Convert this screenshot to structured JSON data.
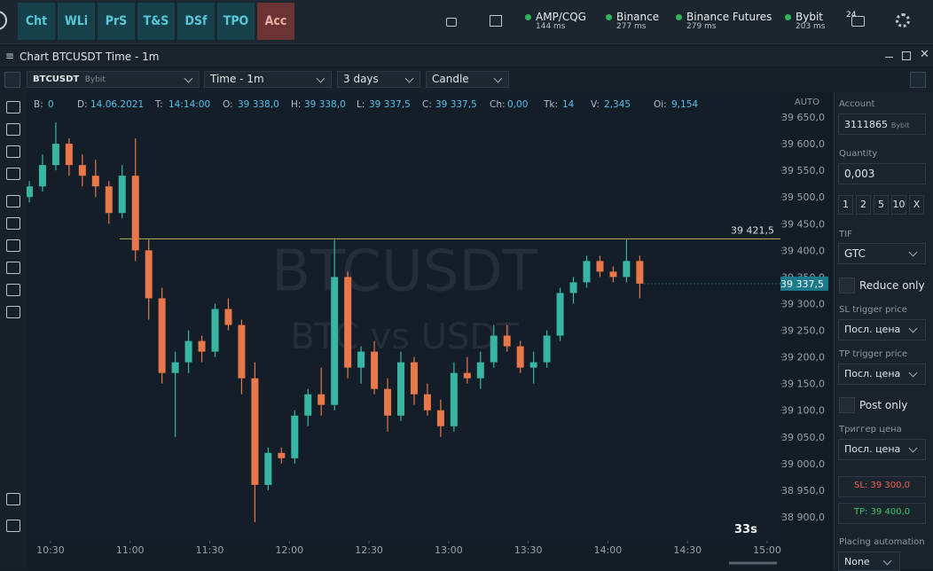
{
  "nav": {
    "tabs": [
      "Cht",
      "WLi",
      "PrS",
      "T&S",
      "DSf",
      "TPO",
      "Acc"
    ],
    "connections": [
      {
        "name": "AMP/CQG",
        "latency": "144 ms"
      },
      {
        "name": "Binance",
        "latency": "277 ms"
      },
      {
        "name": "Binance Futures",
        "latency": "279 ms"
      },
      {
        "name": "Bybit",
        "latency": "203 ms"
      }
    ],
    "notifications": "24"
  },
  "window_title": "Chart BTCUSDT Time - 1m",
  "toolbar": {
    "symbol": "BTCUSDT",
    "exchange": "Bybit",
    "timeframe": "Time - 1m",
    "range": "3 days",
    "style": "Candle"
  },
  "chart_data": {
    "type": "candlestick",
    "info": [
      {
        "label": "B:",
        "value": "0"
      },
      {
        "label": "D:",
        "value": "14.06.2021"
      },
      {
        "label": "T:",
        "value": "14:14:00"
      },
      {
        "label": "O:",
        "value": "39 338,0"
      },
      {
        "label": "H:",
        "value": "39 338,0"
      },
      {
        "label": "L:",
        "value": "39 337,5"
      },
      {
        "label": "C:",
        "value": "39 337,5"
      },
      {
        "label": "Ch:",
        "value": "0,00"
      },
      {
        "label": "Tk:",
        "value": "14"
      },
      {
        "label": "V:",
        "value": "2,345"
      },
      {
        "label": "Oi:",
        "value": "9,154"
      }
    ],
    "watermark": [
      "BTCUSDT",
      "BTC vs USDT"
    ],
    "x": [
      "10:22",
      "10:27",
      "10:32",
      "10:37",
      "10:42",
      "10:47",
      "10:52",
      "10:57",
      "11:02",
      "11:07",
      "11:12",
      "11:17",
      "11:22",
      "11:27",
      "11:32",
      "11:37",
      "11:42",
      "11:47",
      "11:52",
      "11:57",
      "12:02",
      "12:07",
      "12:12",
      "12:17",
      "12:22",
      "12:27",
      "12:32",
      "12:37",
      "12:42",
      "12:47",
      "12:52",
      "12:57",
      "13:02",
      "13:07",
      "13:12",
      "13:17",
      "13:22",
      "13:27",
      "13:32",
      "13:37",
      "13:42",
      "13:47",
      "13:52",
      "13:57",
      "14:02",
      "14:07",
      "14:12"
    ],
    "open": [
      39500,
      39520,
      39560,
      39600,
      39560,
      39540,
      39520,
      39470,
      39540,
      39400,
      39310,
      39170,
      39190,
      39230,
      39210,
      39290,
      39260,
      39160,
      38960,
      39020,
      39010,
      39090,
      39130,
      39110,
      39350,
      39180,
      39210,
      39140,
      39090,
      39190,
      39130,
      39100,
      39070,
      39170,
      39160,
      39190,
      39240,
      39220,
      39180,
      39190,
      39240,
      39320,
      39340,
      39380,
      39360,
      39350,
      39380
    ],
    "high": [
      39530,
      39580,
      39640,
      39610,
      39580,
      39570,
      39530,
      39560,
      39610,
      39420,
      39330,
      39210,
      39250,
      39240,
      39300,
      39310,
      39270,
      39190,
      39030,
      39030,
      39100,
      39140,
      39180,
      39420,
      39360,
      39220,
      39230,
      39160,
      39210,
      39200,
      39150,
      39120,
      39190,
      39200,
      39210,
      39260,
      39260,
      39230,
      39210,
      39250,
      39330,
      39350,
      39390,
      39390,
      39370,
      39420,
      39390
    ],
    "low": [
      39490,
      39510,
      39550,
      39540,
      39520,
      39500,
      39450,
      39460,
      39380,
      39270,
      39150,
      39050,
      39170,
      39190,
      39200,
      39250,
      39130,
      38890,
      38950,
      39000,
      39000,
      39070,
      39090,
      39100,
      39160,
      39150,
      39130,
      39060,
      39080,
      39110,
      39090,
      39050,
      39060,
      39150,
      39140,
      39180,
      39210,
      39170,
      39150,
      39180,
      39230,
      39300,
      39330,
      39350,
      39340,
      39340,
      39310
    ],
    "close": [
      39520,
      39560,
      39600,
      39560,
      39540,
      39520,
      39470,
      39540,
      39400,
      39310,
      39170,
      39190,
      39230,
      39210,
      39290,
      39260,
      39160,
      38960,
      39020,
      39010,
      39090,
      39130,
      39110,
      39350,
      39180,
      39210,
      39140,
      39090,
      39190,
      39130,
      39100,
      39070,
      39170,
      39160,
      39190,
      39240,
      39220,
      39180,
      39190,
      39240,
      39320,
      39340,
      39380,
      39360,
      39350,
      39380,
      39337.5
    ],
    "up_color": "#38b6a3",
    "down_color": "#e8774a",
    "xlim": [
      "10:21",
      "15:05"
    ],
    "xticks": [
      "10:30",
      "11:00",
      "11:30",
      "12:00",
      "12:30",
      "13:00",
      "13:30",
      "14:00",
      "14:30",
      "15:00"
    ],
    "ylim": [
      38855,
      39695
    ],
    "yticks": [
      {
        "value": 38900,
        "label": "38 900,0"
      },
      {
        "value": 38950,
        "label": "38 950,0"
      },
      {
        "value": 39000,
        "label": "39 000,0"
      },
      {
        "value": 39050,
        "label": "39 050,0"
      },
      {
        "value": 39100,
        "label": "39 100,0"
      },
      {
        "value": 39150,
        "label": "39 150,0"
      },
      {
        "value": 39200,
        "label": "39 200,0"
      },
      {
        "value": 39250,
        "label": "39 250,0"
      },
      {
        "value": 39300,
        "label": "39 300,0"
      },
      {
        "value": 39350,
        "label": "39 350,0"
      },
      {
        "value": 39400,
        "label": "39 400,0"
      },
      {
        "value": 39450,
        "label": "39 450,0"
      },
      {
        "value": 39500,
        "label": "39 500,0"
      },
      {
        "value": 39550,
        "label": "39 550,0"
      },
      {
        "value": 39600,
        "label": "39 600,0"
      },
      {
        "value": 39650,
        "label": "39 650,0"
      }
    ],
    "scale_mode": "AUTO",
    "level": {
      "value": 39421.5,
      "label": "39 421,5",
      "color": "#b8b45a"
    },
    "last": {
      "value": 39337.5,
      "label": "39 337,5"
    },
    "timer": "33s"
  },
  "panel": {
    "account_label": "Account",
    "account": "3111865",
    "exchange": "Bybit",
    "quantity_label": "Quantity",
    "quantity": "0,003",
    "quick": [
      "1",
      "2",
      "5",
      "10",
      "X"
    ],
    "tif_label": "TIF",
    "tif": "GTC",
    "reduce_only": "Reduce only",
    "sl_trigger_label": "SL trigger price",
    "sl_trigger": "Посл. цена",
    "tp_trigger_label": "TP trigger price",
    "tp_trigger": "Посл. цена",
    "post_only": "Post only",
    "trigger_label": "Триггер цена",
    "trigger": "Посл. цена",
    "sl": "SL: 39 300,0",
    "tp": "TP: 39 400,0",
    "automation_label": "Placing automation",
    "automation": "None"
  }
}
